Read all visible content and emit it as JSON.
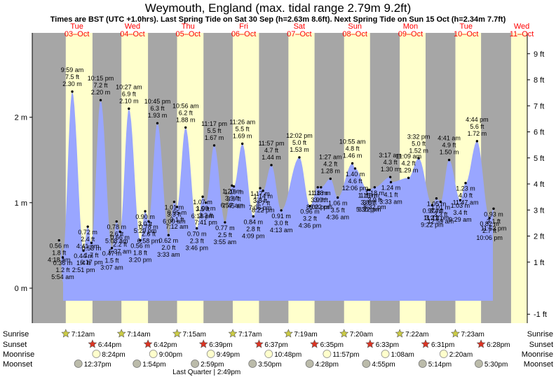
{
  "title": "Weymouth, England (max. tidal range 2.79m 9.2ft)",
  "subtitle": "Times are BST (UTC +1.0hrs). Last Spring Tide on Sat 30 Sep (h=2.63m 8.6ft). Next Spring Tide on Sun 15 Oct (h=2.34m 7.7ft)",
  "chart_data": {
    "type": "area",
    "title": "Weymouth, England (max. tidal range 2.79m 9.2ft)",
    "y_left_unit": "m",
    "y_left_ticks": [
      0,
      1,
      2
    ],
    "y_left_tick_labels": [
      "0 m",
      "1 m",
      "2 m"
    ],
    "y_right_ticks": [
      -1,
      1,
      2,
      3,
      4,
      5,
      6,
      7,
      8,
      9
    ],
    "y_right_tick_labels": [
      "-1 ft",
      "1 ft",
      "2 ft",
      "3 ft",
      "4 ft",
      "5 ft",
      "6 ft",
      "7 ft",
      "8 ft",
      "9 ft"
    ],
    "ylim_m": [
      -0.4,
      2.95
    ],
    "days": [
      {
        "dow": "Tue",
        "date": "03–Oct"
      },
      {
        "dow": "Wed",
        "date": "04–Oct"
      },
      {
        "dow": "Thu",
        "date": "05–Oct"
      },
      {
        "dow": "Fri",
        "date": "06–Oct"
      },
      {
        "dow": "Sat",
        "date": "07–Oct"
      },
      {
        "dow": "Sun",
        "date": "08–Oct"
      },
      {
        "dow": "Mon",
        "date": "09–Oct"
      },
      {
        "dow": "Tue",
        "date": "10–Oct"
      },
      {
        "dow": "Wed",
        "date": "11–Oct"
      }
    ],
    "tides": [
      {
        "day": 0,
        "time": "5:54 am",
        "ft": "1.2 ft",
        "m": 0.36,
        "hour": 5.9
      },
      {
        "day": 0,
        "time": "9:59 am",
        "ft": "7.5 ft",
        "m": 2.3,
        "hour": 10.0
      },
      {
        "day": 0,
        "time": "2:51 pm",
        "ft": "1.4 ft",
        "m": 0.44,
        "hour": 14.85
      },
      {
        "day": 0,
        "time": "4:18 am",
        "ft": "1.8 ft",
        "m": 0.56,
        "hour": 4.3,
        "secondary": true
      },
      {
        "day": 0,
        "time": "4:41 pm",
        "ft": "2.4 ft",
        "m": 0.72,
        "hour": 16.7,
        "secondary": true
      },
      {
        "day": 0,
        "time": "6:17 pm",
        "ft": "1.7 ft",
        "m": 0.53,
        "hour": 18.3,
        "secondary": true
      },
      {
        "day": 0,
        "time": "10:15 pm",
        "ft": "7.2 ft",
        "m": 2.2,
        "hour": 22.25
      },
      {
        "day": 1,
        "time": "3:07 am",
        "ft": "1.5 ft",
        "m": 0.47,
        "hour": 3.1
      },
      {
        "day": 1,
        "time": "5:08 am",
        "ft": "2.6 ft",
        "m": 0.78,
        "hour": 5.13,
        "secondary": true
      },
      {
        "day": 1,
        "time": "6:37 am",
        "ft": "2.2 ft",
        "m": 0.66,
        "hour": 6.6,
        "secondary": true
      },
      {
        "day": 1,
        "time": "10:27 am",
        "ft": "6.9 ft",
        "m": 2.1,
        "hour": 10.45
      },
      {
        "day": 1,
        "time": "3:20 pm",
        "ft": "1.8 ft",
        "m": 0.56,
        "hour": 15.33
      },
      {
        "day": 1,
        "time": "5:29 pm",
        "ft": "3.0 ft",
        "m": 0.9,
        "hour": 17.48,
        "secondary": true
      },
      {
        "day": 1,
        "time": "6:58 pm",
        "ft": "2.6 ft",
        "m": 0.78,
        "hour": 18.97,
        "secondary": true
      },
      {
        "day": 1,
        "time": "10:45 pm",
        "ft": "6.3 ft",
        "m": 1.93,
        "hour": 22.75
      },
      {
        "day": 2,
        "time": "3:33 am",
        "ft": "2.0 ft",
        "m": 0.62,
        "hour": 3.55
      },
      {
        "day": 2,
        "time": "6:00 am",
        "ft": "3.3 ft",
        "m": 1.01,
        "hour": 6.0,
        "secondary": true
      },
      {
        "day": 2,
        "time": "7:12 am",
        "ft": "3.1 ft",
        "m": 0.95,
        "hour": 7.2,
        "secondary": true
      },
      {
        "day": 2,
        "time": "10:56 am",
        "ft": "6.2 ft",
        "m": 1.88,
        "hour": 10.93
      },
      {
        "day": 2,
        "time": "3:46 pm",
        "ft": "2.3 ft",
        "m": 0.7,
        "hour": 15.77
      },
      {
        "day": 2,
        "time": "6:18 pm",
        "ft": "3.5 ft",
        "m": 1.07,
        "hour": 18.3,
        "secondary": true
      },
      {
        "day": 2,
        "time": "7:41 pm",
        "ft": "3.3 ft",
        "m": 1.0,
        "hour": 19.68,
        "secondary": true
      },
      {
        "day": 2,
        "time": "11:17 pm",
        "ft": "5.5 ft",
        "m": 1.67,
        "hour": 23.28
      },
      {
        "day": 3,
        "time": "3:55 am",
        "ft": "2.5 ft",
        "m": 0.77,
        "hour": 3.92
      },
      {
        "day": 3,
        "time": "6:57 am",
        "ft": "3.9 ft",
        "m": 1.2,
        "hour": 6.95,
        "secondary": true
      },
      {
        "day": 3,
        "time": "7:45 am",
        "ft": "3.9 ft",
        "m": 1.19,
        "hour": 7.75,
        "secondary": true
      },
      {
        "day": 3,
        "time": "11:26 am",
        "ft": "5.5 ft",
        "m": 1.69,
        "hour": 11.43
      },
      {
        "day": 3,
        "time": "4:09 pm",
        "ft": "2.8 ft",
        "m": 0.84,
        "hour": 16.15
      },
      {
        "day": 3,
        "time": "7:06 pm",
        "ft": "3.8 ft",
        "m": 1.17,
        "hour": 19.1,
        "secondary": true
      },
      {
        "day": 3,
        "time": "8:22 pm",
        "ft": "3.7 ft",
        "m": 1.14,
        "hour": 20.37,
        "secondary": true
      },
      {
        "day": 3,
        "time": "11:57 pm",
        "ft": "4.7 ft",
        "m": 1.44,
        "hour": 23.95
      },
      {
        "day": 4,
        "time": "4:13 am",
        "ft": "3.0 ft",
        "m": 0.91,
        "hour": 4.22
      },
      {
        "day": 4,
        "time": "12:02 pm",
        "ft": "5.0 ft",
        "m": 1.53,
        "hour": 12.03
      },
      {
        "day": 4,
        "time": "4:36 pm",
        "ft": "3.2 ft",
        "m": 0.96,
        "hour": 16.6
      },
      {
        "day": 4,
        "time": "8:00 pm",
        "ft": "3.9 ft",
        "m": 1.18,
        "hour": 20.0,
        "secondary": true
      },
      {
        "day": 4,
        "time": "9:22 pm",
        "ft": "3.9 ft",
        "m": 1.18,
        "hour": 21.37,
        "secondary": true
      },
      {
        "day": 5,
        "time": "1:27 am",
        "ft": "4.2 ft",
        "m": 1.28,
        "hour": 1.45
      },
      {
        "day": 5,
        "time": "4:36 am",
        "ft": "3.5 ft",
        "m": 1.06,
        "hour": 4.6
      },
      {
        "day": 5,
        "time": "10:55 am",
        "ft": "4.8 ft",
        "m": 1.46,
        "hour": 10.92
      },
      {
        "day": 5,
        "time": "12:06 pm",
        "ft": "4.6 ft",
        "m": 1.4,
        "hour": 12.1,
        "secondary": true
      },
      {
        "day": 5,
        "time": "5:30 pm",
        "ft": "3.8 ft",
        "m": 1.15,
        "hour": 17.5
      },
      {
        "day": 5,
        "time": "6:22 pm",
        "ft": "3.8 ft",
        "m": 1.15,
        "hour": 18.37,
        "secondary": true
      },
      {
        "day": 5,
        "time": "8:32 pm",
        "ft": "3.9 ft",
        "m": 1.18,
        "hour": 20.53,
        "secondary": true
      },
      {
        "day": 6,
        "time": "3:17 am",
        "ft": "4.3 ft",
        "m": 1.3,
        "hour": 3.28
      },
      {
        "day": 6,
        "time": "3:33 am",
        "ft": "4.1 ft",
        "m": 1.24,
        "hour": 3.55,
        "secondary": true
      },
      {
        "day": 6,
        "time": "11:09 am",
        "ft": "4.2 ft",
        "m": 1.29,
        "hour": 11.15
      },
      {
        "day": 6,
        "time": "3:32 pm",
        "ft": "5.0 ft",
        "m": 1.52,
        "hour": 15.53
      },
      {
        "day": 6,
        "time": "9:22 pm",
        "ft": "3.2 ft",
        "m": 0.97,
        "hour": 21.37
      },
      {
        "day": 6,
        "time": "11:12 pm",
        "ft": "3.4 ft",
        "m": 1.05,
        "hour": 23.2,
        "secondary": true
      },
      {
        "day": 7,
        "time": "12:59 am",
        "ft": "3.3 ft",
        "m": 1.01,
        "hour": 0.98,
        "secondary": true
      },
      {
        "day": 7,
        "time": "4:41 am",
        "ft": "4.9 ft",
        "m": 1.5,
        "hour": 4.68
      },
      {
        "day": 7,
        "time": "9:29 am",
        "ft": "3.4 ft",
        "m": 1.03,
        "hour": 9.48
      },
      {
        "day": 7,
        "time": "11:47 am",
        "ft": "4.0 ft",
        "m": 1.23,
        "hour": 11.78,
        "secondary": true
      },
      {
        "day": 7,
        "time": "4:44 pm",
        "ft": "5.6 ft",
        "m": 1.72,
        "hour": 16.73
      },
      {
        "day": 7,
        "time": "10:06 pm",
        "ft": "2.7 ft",
        "m": 0.82,
        "hour": 22.1
      },
      {
        "day": 7,
        "time": "11:53 pm",
        "ft": "3.1 ft",
        "m": 0.93,
        "hour": 23.88,
        "secondary": true
      }
    ]
  },
  "rows": {
    "sunrise": {
      "label": "Sunrise",
      "times": [
        "7:12am",
        "7:14am",
        "7:15am",
        "7:17am",
        "7:19am",
        "7:20am",
        "7:22am",
        "7:23am"
      ]
    },
    "sunset": {
      "label": "Sunset",
      "times": [
        "6:44pm",
        "6:42pm",
        "6:39pm",
        "6:37pm",
        "6:35pm",
        "6:33pm",
        "6:31pm",
        "6:28pm"
      ]
    },
    "moonrise": {
      "label": "Moonrise",
      "times": [
        "8:24pm",
        "9:00pm",
        "9:49pm",
        "10:48pm",
        "11:57pm",
        "1:08am",
        "2:20am"
      ]
    },
    "moonset": {
      "label": "Moonset",
      "times": [
        "12:37pm",
        "1:54pm",
        "2:59pm",
        "3:50pm",
        "4:28pm",
        "4:55pm",
        "5:14pm",
        "5:30pm"
      ]
    },
    "phase": "Last Quarter | 2:49pm"
  },
  "colors": {
    "night": "#a6a6a6",
    "day": "#ffffcc",
    "water": "#99a6ff",
    "day_label": "#ff0000",
    "sun_star": "#cccc44",
    "sunset_star": "#dd3322"
  }
}
